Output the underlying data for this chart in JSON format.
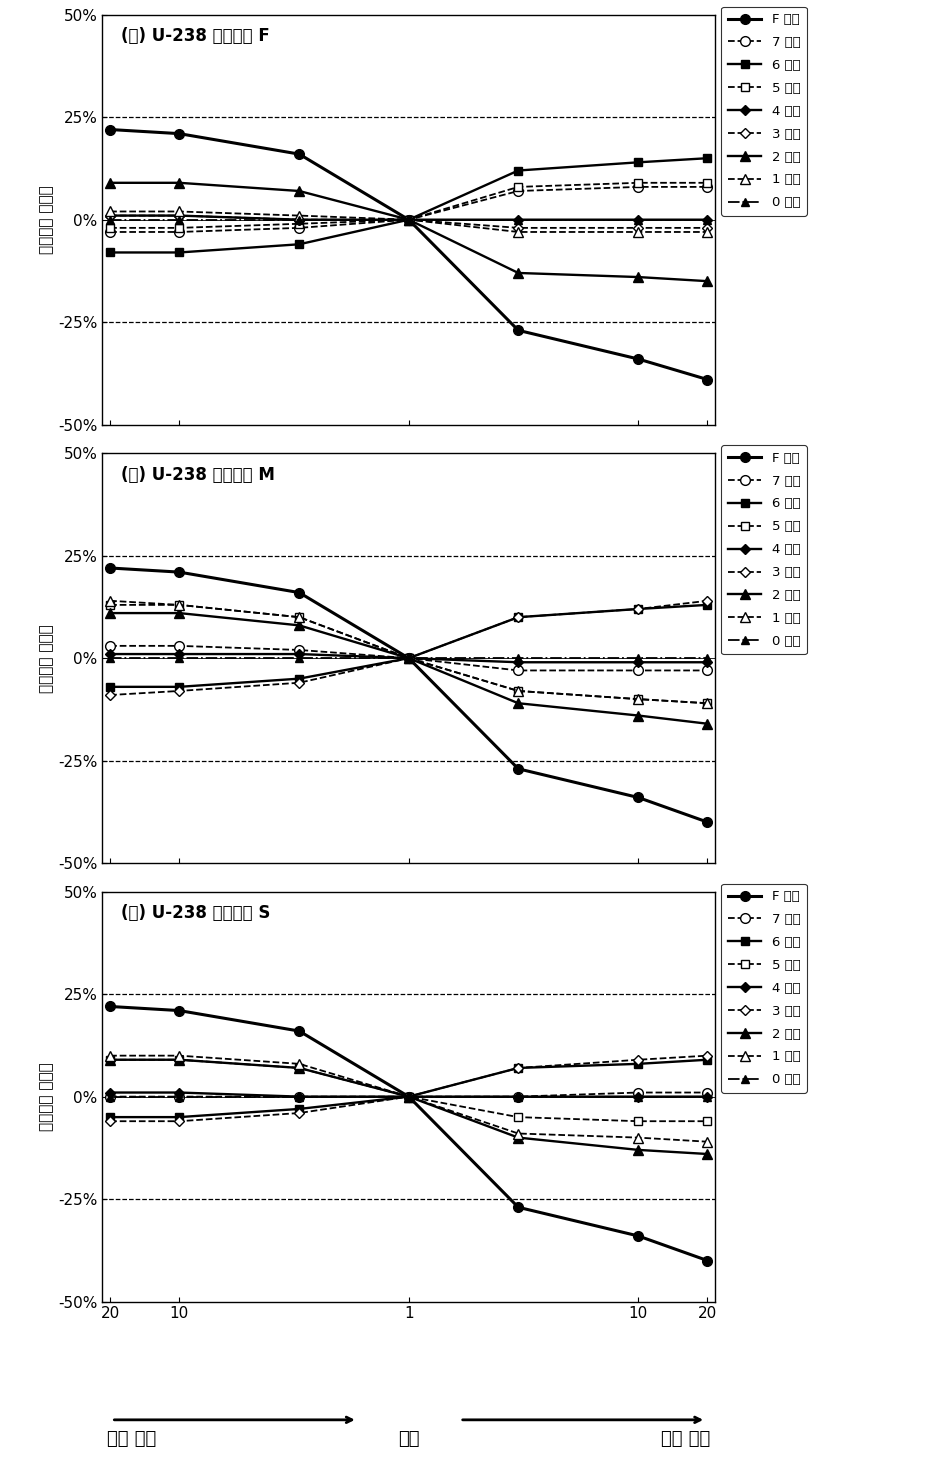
{
  "titles": [
    "(가) U-238 흡수형태 F",
    "(나) U-238 흡수형태 M",
    "(다) U-238 흡수형태 S"
  ],
  "ylabel": "척도인자 변화율",
  "xlabel_left": "선형 감소",
  "xlabel_mid": "균등",
  "xlabel_right": "선형 증가",
  "x_ticks_labels": [
    "20",
    "10",
    "1",
    "10",
    "20"
  ],
  "legend_labels": [
    "F 단계",
    "7 단계",
    "6 단계",
    "5 단계",
    "4 단계",
    "3 단계",
    "2 단계",
    "1 단계",
    "0 단계"
  ],
  "ylim": [
    -50,
    50
  ],
  "yticks": [
    -50,
    -25,
    0,
    25,
    50
  ],
  "ytick_labels": [
    "-50%",
    "-25%",
    "0%",
    "25%",
    "50%"
  ],
  "series_F": {
    "F": [
      22,
      21,
      16,
      0,
      -27,
      -34,
      -39
    ],
    "7": [
      -3,
      -3,
      -2,
      0,
      7,
      8,
      8
    ],
    "6": [
      -8,
      -8,
      -6,
      0,
      12,
      14,
      15
    ],
    "5": [
      -2,
      -2,
      -1,
      0,
      8,
      9,
      9
    ],
    "4": [
      1,
      1,
      0,
      0,
      0,
      0,
      0
    ],
    "3": [
      1,
      1,
      0,
      0,
      -2,
      -2,
      -2
    ],
    "2": [
      9,
      9,
      7,
      0,
      -13,
      -14,
      -15
    ],
    "1": [
      2,
      2,
      1,
      0,
      -3,
      -3,
      -3
    ],
    "0": [
      0,
      0,
      0,
      0,
      0,
      0,
      0
    ]
  },
  "series_M": {
    "F": [
      22,
      21,
      16,
      0,
      -27,
      -34,
      -40
    ],
    "7": [
      3,
      3,
      2,
      0,
      -3,
      -3,
      -3
    ],
    "6": [
      -7,
      -7,
      -5,
      0,
      10,
      12,
      13
    ],
    "5": [
      13,
      13,
      10,
      0,
      -8,
      -10,
      -11
    ],
    "4": [
      1,
      1,
      1,
      0,
      -1,
      -1,
      -1
    ],
    "3": [
      -9,
      -8,
      -6,
      0,
      10,
      12,
      14
    ],
    "2": [
      11,
      11,
      8,
      0,
      -11,
      -14,
      -16
    ],
    "1": [
      14,
      13,
      10,
      0,
      -8,
      -10,
      -11
    ],
    "0": [
      0,
      0,
      0,
      0,
      0,
      0,
      0
    ]
  },
  "series_S": {
    "F": [
      22,
      21,
      16,
      0,
      -27,
      -34,
      -40
    ],
    "7": [
      0,
      0,
      0,
      0,
      0,
      1,
      1
    ],
    "6": [
      -5,
      -5,
      -3,
      0,
      7,
      8,
      9
    ],
    "5": [
      9,
      9,
      7,
      0,
      -5,
      -6,
      -6
    ],
    "4": [
      1,
      1,
      0,
      0,
      0,
      0,
      0
    ],
    "3": [
      -6,
      -6,
      -4,
      0,
      7,
      9,
      10
    ],
    "2": [
      9,
      9,
      7,
      0,
      -10,
      -13,
      -14
    ],
    "1": [
      10,
      10,
      8,
      0,
      -9,
      -10,
      -11
    ],
    "0": [
      0,
      0,
      0,
      0,
      0,
      0,
      0
    ]
  },
  "line_styles": {
    "F": {
      "ls": "-",
      "marker": "o",
      "ms": 7,
      "mfc": "black",
      "mec": "black",
      "lw": 2.2
    },
    "7": {
      "ls": "--",
      "marker": "o",
      "ms": 7,
      "mfc": "white",
      "mec": "black",
      "lw": 1.3
    },
    "6": {
      "ls": "-",
      "marker": "s",
      "ms": 6,
      "mfc": "black",
      "mec": "black",
      "lw": 1.7
    },
    "5": {
      "ls": "--",
      "marker": "s",
      "ms": 6,
      "mfc": "white",
      "mec": "black",
      "lw": 1.3
    },
    "4": {
      "ls": "-",
      "marker": "D",
      "ms": 5,
      "mfc": "black",
      "mec": "black",
      "lw": 1.7
    },
    "3": {
      "ls": "--",
      "marker": "D",
      "ms": 5,
      "mfc": "white",
      "mec": "black",
      "lw": 1.3
    },
    "2": {
      "ls": "-",
      "marker": "^",
      "ms": 7,
      "mfc": "black",
      "mec": "black",
      "lw": 1.7
    },
    "1": {
      "ls": "--",
      "marker": "^",
      "ms": 7,
      "mfc": "white",
      "mec": "black",
      "lw": 1.3
    },
    "0": {
      "ls": "-.",
      "marker": "^",
      "ms": 6,
      "mfc": "black",
      "mec": "black",
      "lw": 1.3
    }
  }
}
